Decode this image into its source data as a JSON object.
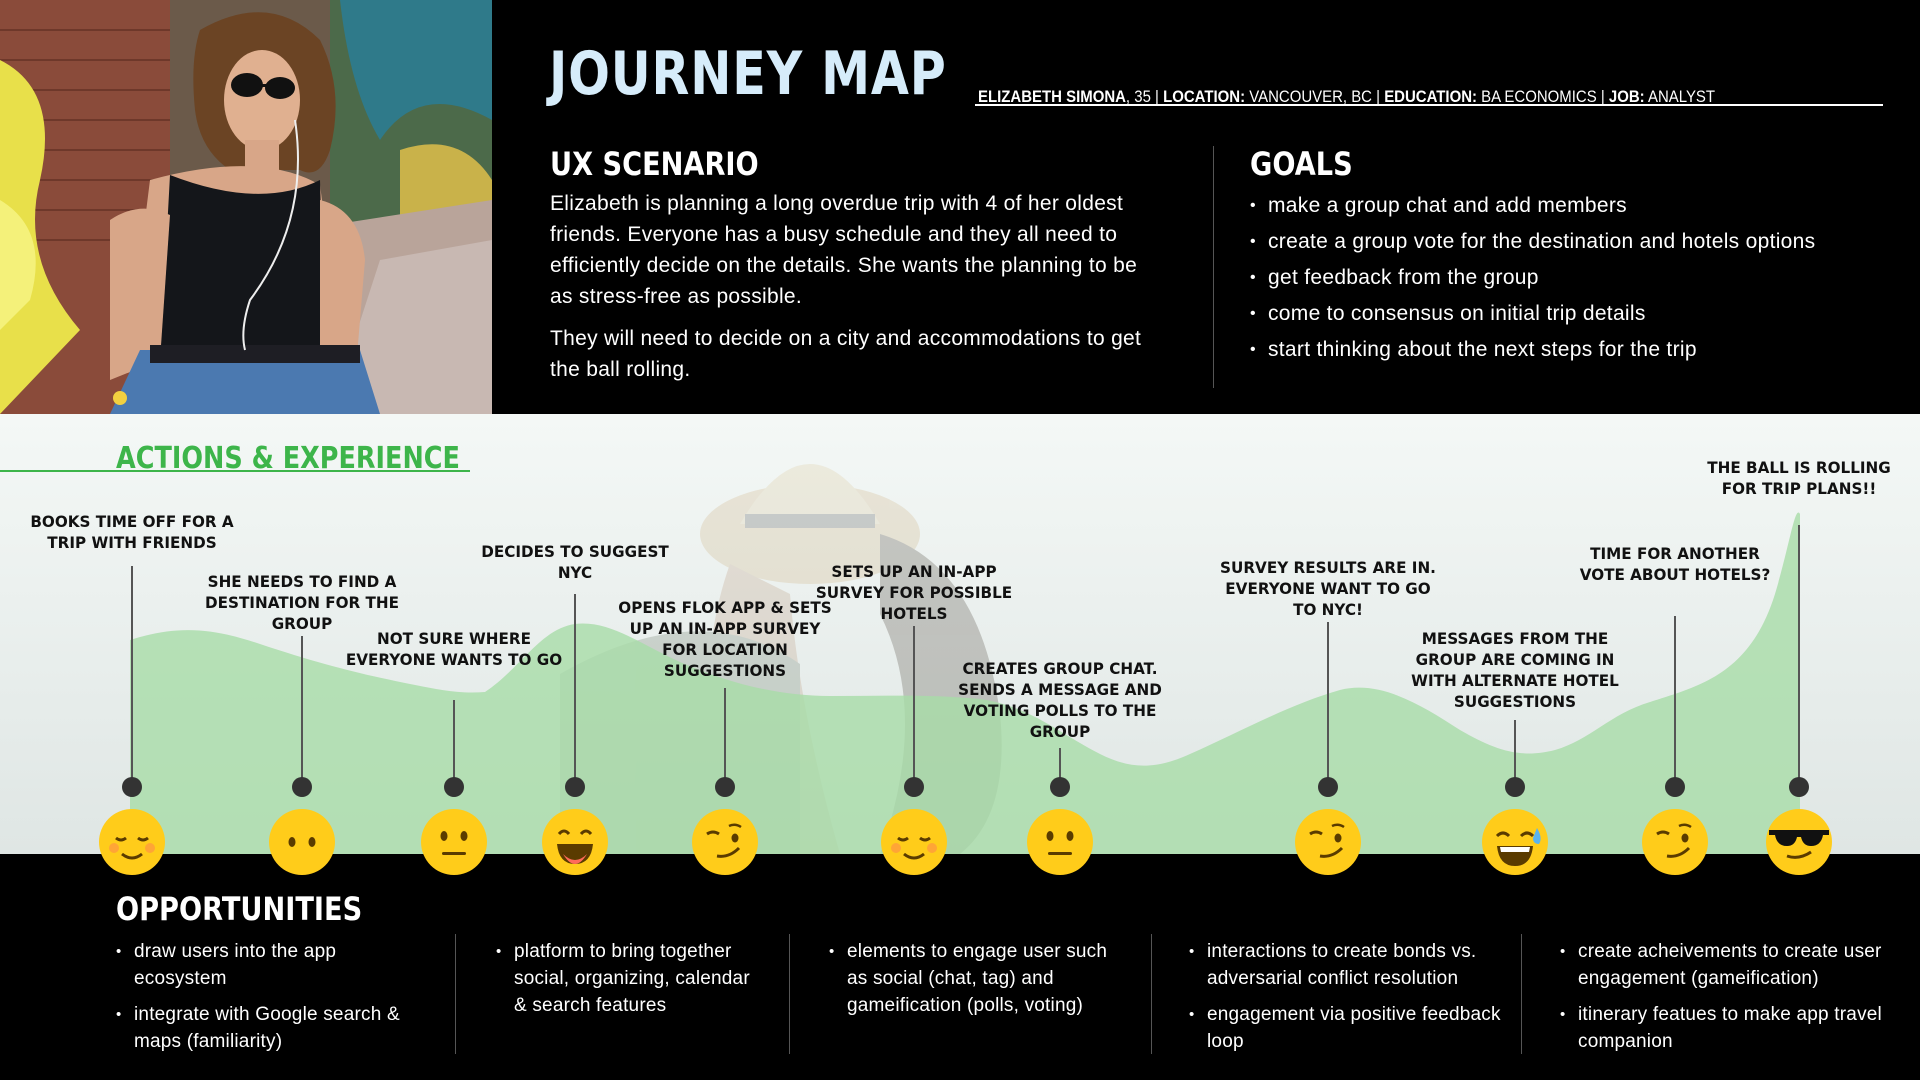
{
  "header": {
    "title": "JOURNEY MAP",
    "persona": {
      "name": "ELIZABETH SIMONA",
      "age": ", 35 | ",
      "location_label": "LOCATION:",
      "location": " VANCOUVER, BC | ",
      "education_label": "EDUCATION:",
      "education": " BA ECONOMICS | ",
      "job_label": "JOB:",
      "job": " ANALYST"
    }
  },
  "ux_scenario": {
    "heading": "UX SCENARIO",
    "paragraph1": "Elizabeth is planning a long overdue trip with 4 of her oldest friends. Everyone has a busy schedule and they all need to efficiently decide on the details. She wants the planning to be as stress-free as possible.",
    "paragraph2": "They will need to decide on a city and accommodations to get the ball rolling."
  },
  "goals": {
    "heading": "GOALS",
    "items": [
      "make a group chat and add members",
      "create a group vote for the destination and hotels options",
      "get feedback from the group",
      "come to consensus on initial trip details",
      "start thinking about the next steps for the trip"
    ]
  },
  "actions": {
    "heading": "ACTIONS & EXPERIENCE",
    "steps": [
      {
        "label": "BOOKS TIME OFF FOR A TRIP WITH FRIENDS",
        "emoji": "relieved-face-icon"
      },
      {
        "label": "SHE NEEDS TO FIND A DESTINATION FOR THE GROUP",
        "emoji": "hushed-face-icon"
      },
      {
        "label": "NOT SURE WHERE EVERYONE WANTS TO GO",
        "emoji": "neutral-face-icon"
      },
      {
        "label": "DECIDES TO SUGGEST NYC",
        "emoji": "grinning-face-icon"
      },
      {
        "label": "OPENS FLOK APP & SETS UP AN IN-APP SURVEY FOR LOCATION SUGGESTIONS",
        "emoji": "smirking-face-icon"
      },
      {
        "label": "SETS UP AN IN-APP SURVEY FOR POSSIBLE HOTELS",
        "emoji": "relieved-face-icon"
      },
      {
        "label": "CREATES GROUP CHAT. SENDS A MESSAGE AND VOTING POLLS TO THE GROUP",
        "emoji": "neutral-face-icon"
      },
      {
        "label": "SURVEY RESULTS ARE IN. EVERYONE WANT TO GO TO NYC!",
        "emoji": "smirking-face-icon"
      },
      {
        "label": "MESSAGES FROM THE GROUP ARE COMING IN WITH ALTERNATE HOTEL SUGGESTIONS",
        "emoji": "sweat-smile-face-icon"
      },
      {
        "label": "TIME FOR ANOTHER VOTE ABOUT HOTELS?",
        "emoji": "smirking-face-icon"
      },
      {
        "label": "THE BALL IS ROLLING FOR TRIP PLANS!!",
        "emoji": "sunglasses-face-icon"
      }
    ]
  },
  "opportunities": {
    "heading": "OPPORTUNITIES",
    "columns": [
      [
        "draw users into the app ecosystem",
        "integrate with Google search & maps (familiarity)"
      ],
      [
        "platform to bring together social, organizing, calendar & search features"
      ],
      [
        "elements to engage user such as social (chat, tag) and gameification (polls, voting)"
      ],
      [
        "interactions to create bonds vs. adversarial conflict resolution",
        "engagement via positive feedback loop"
      ],
      [
        "create acheivements to create user engagement (gameification)",
        "itinerary featues to make app travel companion"
      ]
    ]
  },
  "colors": {
    "accent_green": "#3db54a",
    "curve_green": "#a8dca8",
    "emoji_yellow": "#ffcc1a",
    "title_blue": "#d6ecfa"
  }
}
